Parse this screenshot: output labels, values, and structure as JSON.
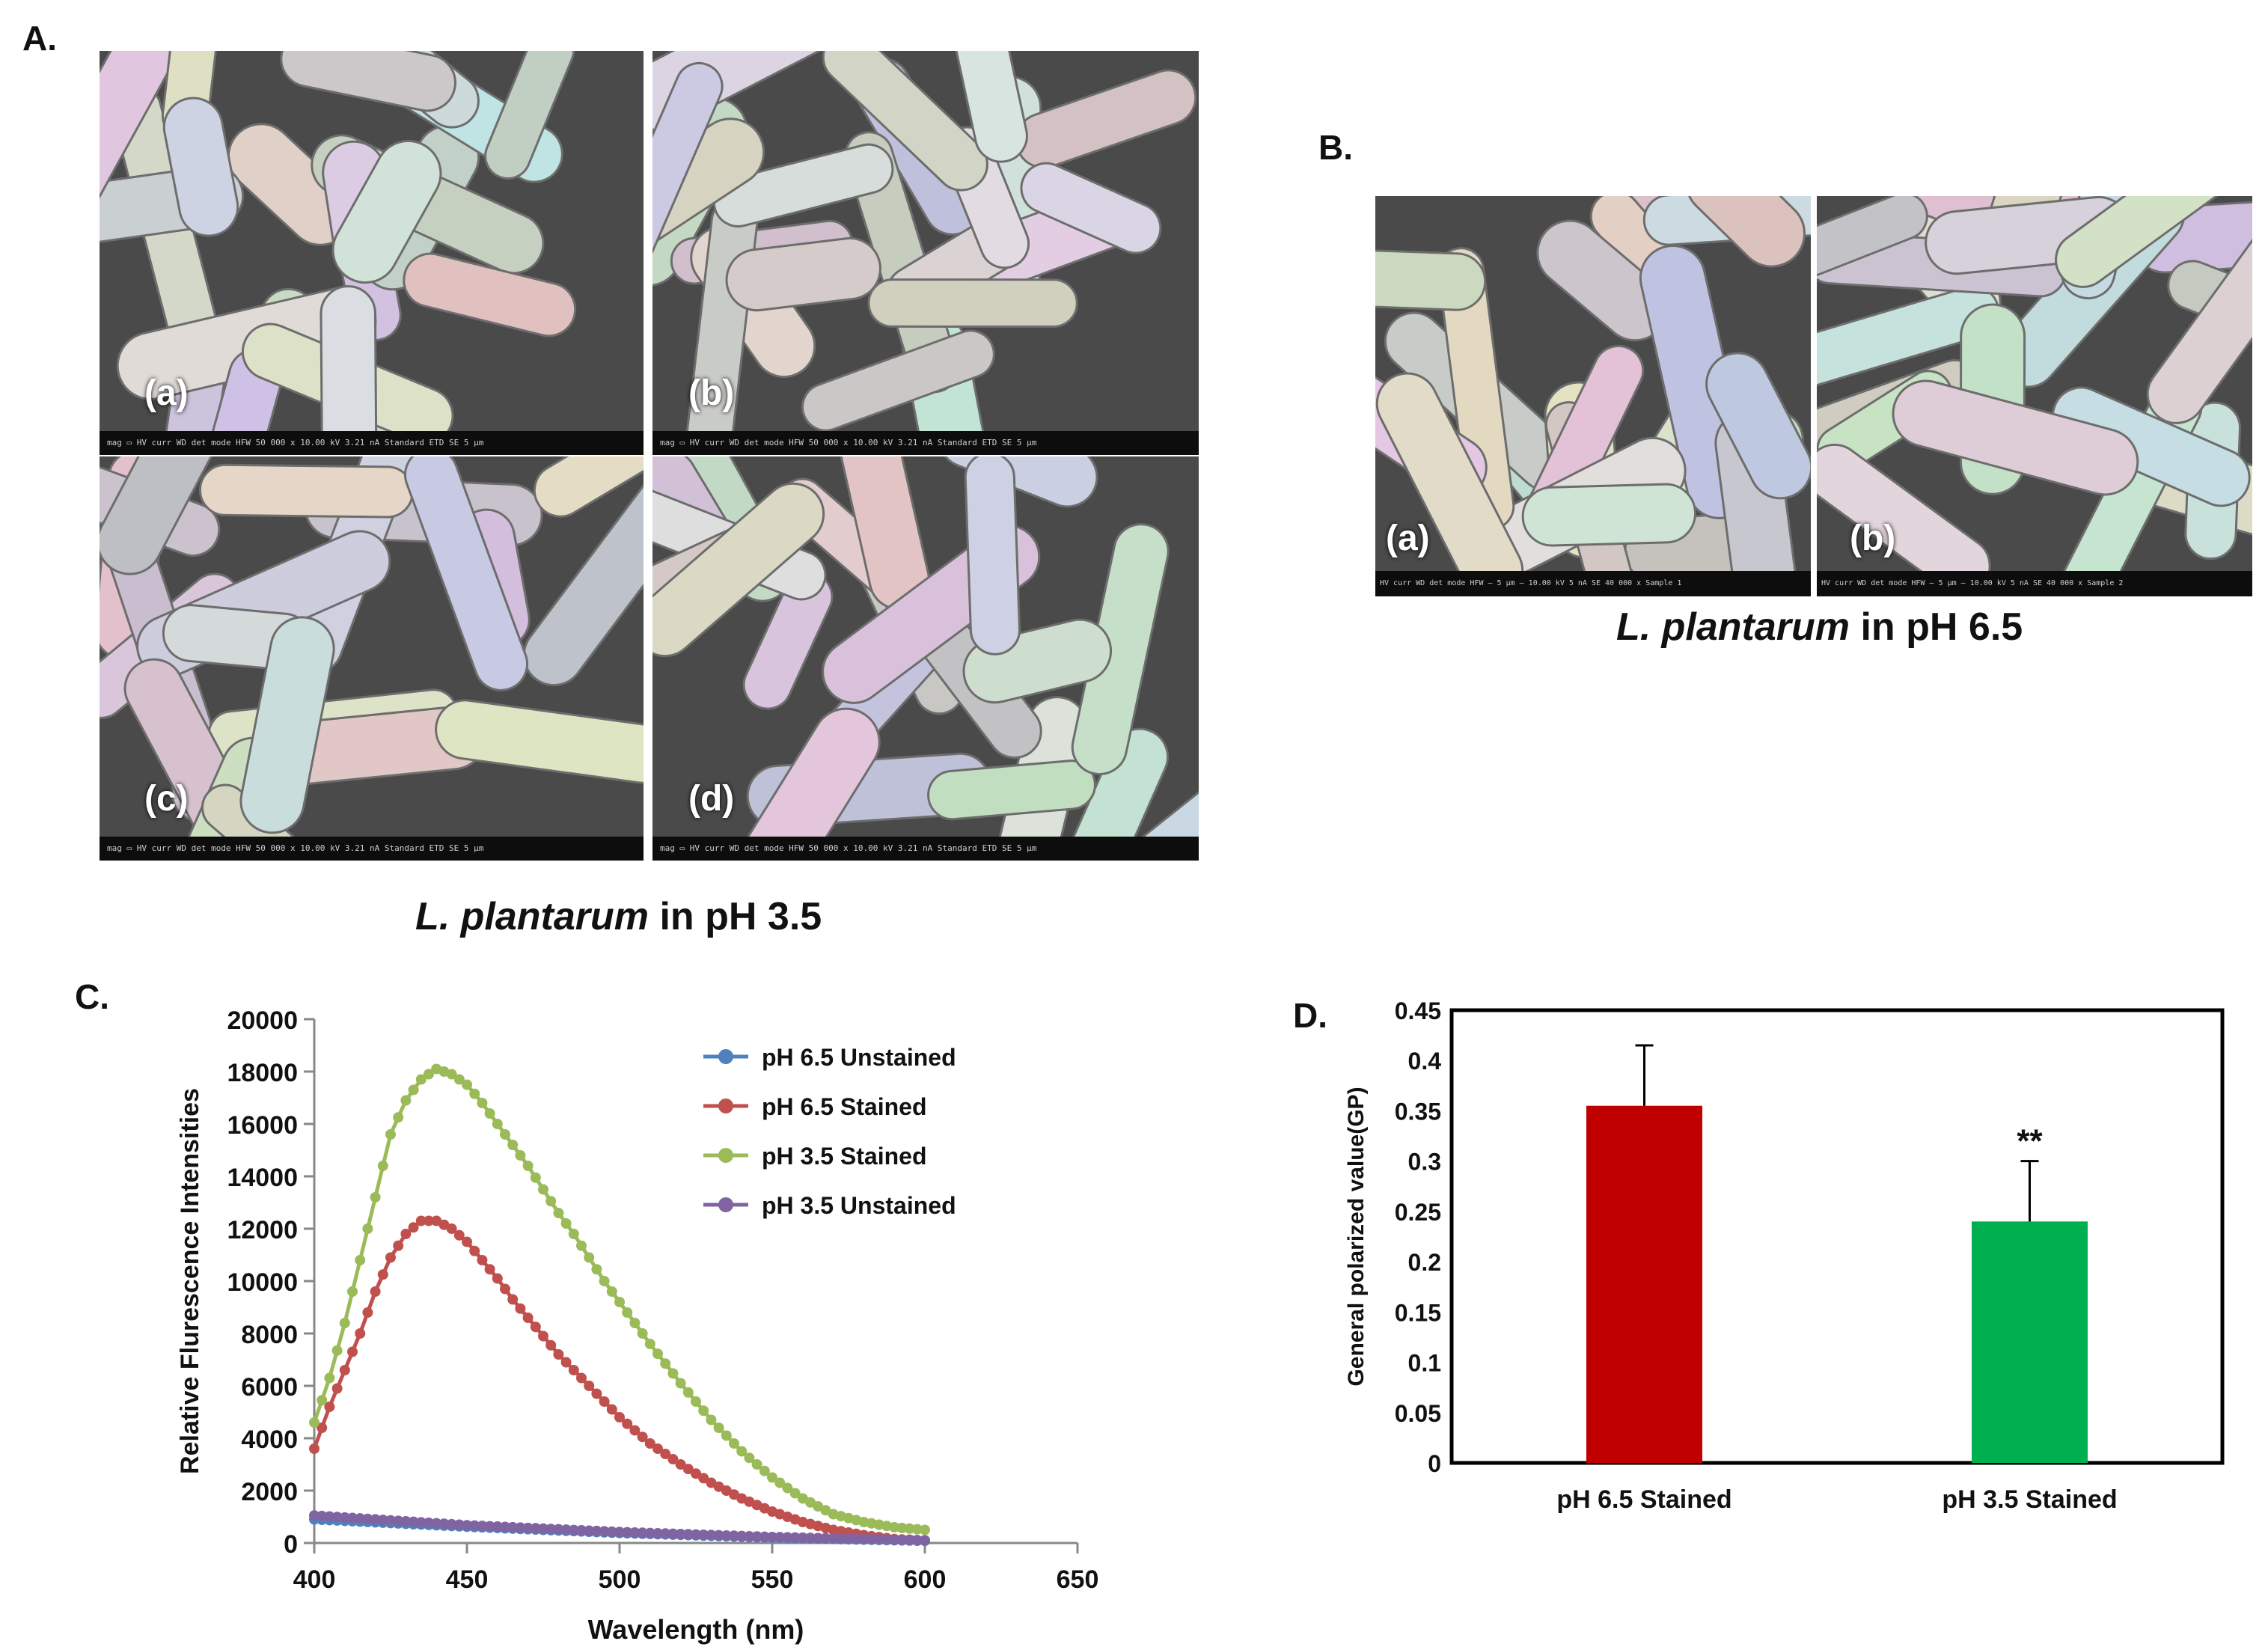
{
  "panels": {
    "A": {
      "letter": "A.",
      "caption_species": "L. plantarum",
      "caption_rest": " in pH 3.5",
      "images": [
        {
          "label": "(a)",
          "scale_text": "mag ▭  HV  curr  WD  det  mode  HFW   50 000 x  10.00 kV  3.21 nA  Standard  ETD  SE  5 μm"
        },
        {
          "label": "(b)",
          "scale_text": "mag ▭  HV  curr  WD  det  mode  HFW   50 000 x  10.00 kV  3.21 nA  Standard  ETD  SE  5 μm"
        },
        {
          "label": "(c)",
          "scale_text": "mag ▭  HV  curr  WD  det  mode  HFW   50 000 x  10.00 kV  3.21 nA  Standard  ETD  SE  5 μm"
        },
        {
          "label": "(d)",
          "scale_text": "mag ▭  HV  curr  WD  det  mode  HFW   50 000 x  10.00 kV  3.21 nA  Standard  ETD  SE  5 μm"
        }
      ]
    },
    "B": {
      "letter": "B.",
      "caption_species": "L. plantarum",
      "caption_rest": " in pH 6.5",
      "images": [
        {
          "label": "(a)",
          "scale_text": "HV  curr  WD  det  mode  HFW  — 5 μm —   10.00 kV  5 nA  SE  40 000 x  Sample 1"
        },
        {
          "label": "(b)",
          "scale_text": "HV  curr  WD  det  mode  HFW  — 5 μm —   10.00 kV  5 nA  SE  40 000 x  Sample 2"
        }
      ]
    },
    "C": {
      "letter": "C."
    },
    "D": {
      "letter": "D."
    }
  },
  "chart_data": [
    {
      "type": "line",
      "panel": "C",
      "xlabel": "Wavelength (nm)",
      "ylabel": "Relative Flurescence Intensities",
      "xlim": [
        400,
        650
      ],
      "ylim": [
        0,
        20000
      ],
      "xticks": [
        400,
        450,
        500,
        550,
        600,
        650
      ],
      "yticks": [
        0,
        2000,
        4000,
        6000,
        8000,
        10000,
        12000,
        14000,
        16000,
        18000,
        20000
      ],
      "legend_position": "top-right",
      "series": [
        {
          "name": "pH 6.5 Unstained",
          "color": "#4f81bd",
          "x": [
            400,
            450,
            500,
            550,
            600
          ],
          "y": [
            900,
            620,
            380,
            200,
            80
          ]
        },
        {
          "name": "pH 6.5 Stained",
          "color": "#c0504d",
          "x": [
            400,
            405,
            410,
            415,
            420,
            425,
            430,
            435,
            440,
            445,
            450,
            455,
            460,
            465,
            470,
            475,
            480,
            485,
            490,
            495,
            500,
            510,
            520,
            530,
            540,
            550,
            560,
            570,
            580,
            590,
            600
          ],
          "y": [
            3600,
            5200,
            6600,
            8000,
            9600,
            10900,
            11800,
            12300,
            12300,
            12000,
            11500,
            10800,
            10100,
            9300,
            8600,
            7900,
            7200,
            6600,
            6000,
            5400,
            4800,
            3800,
            3000,
            2300,
            1700,
            1200,
            800,
            500,
            300,
            150,
            100
          ]
        },
        {
          "name": "pH 3.5 Stained",
          "color": "#9bbb59",
          "x": [
            400,
            405,
            410,
            415,
            420,
            425,
            430,
            435,
            440,
            445,
            450,
            455,
            460,
            465,
            470,
            475,
            480,
            485,
            490,
            495,
            500,
            510,
            520,
            530,
            540,
            550,
            560,
            570,
            580,
            590,
            600
          ],
          "y": [
            4600,
            6300,
            8400,
            10800,
            13200,
            15600,
            16900,
            17700,
            18100,
            17900,
            17500,
            16800,
            16000,
            15200,
            14400,
            13500,
            12600,
            11800,
            10900,
            10000,
            9200,
            7600,
            6100,
            4700,
            3500,
            2500,
            1700,
            1100,
            800,
            600,
            500
          ]
        },
        {
          "name": "pH 3.5 Unstained",
          "color": "#8064a2",
          "x": [
            400,
            450,
            500,
            550,
            600
          ],
          "y": [
            1050,
            680,
            420,
            230,
            100
          ]
        }
      ]
    },
    {
      "type": "bar",
      "panel": "D",
      "ylabel": "General polarized value(GP)",
      "ylim": [
        0,
        0.45
      ],
      "yticks": [
        0,
        0.05,
        0.1,
        0.15,
        0.2,
        0.25,
        0.3,
        0.35,
        0.4,
        0.45
      ],
      "categories": [
        "pH 6.5 Stained",
        "pH 3.5 Stained"
      ],
      "values": [
        0.355,
        0.24
      ],
      "errors": [
        0.06,
        0.06
      ],
      "colors": [
        "#c00000",
        "#00b050"
      ],
      "annotations": [
        "",
        "**"
      ]
    }
  ]
}
